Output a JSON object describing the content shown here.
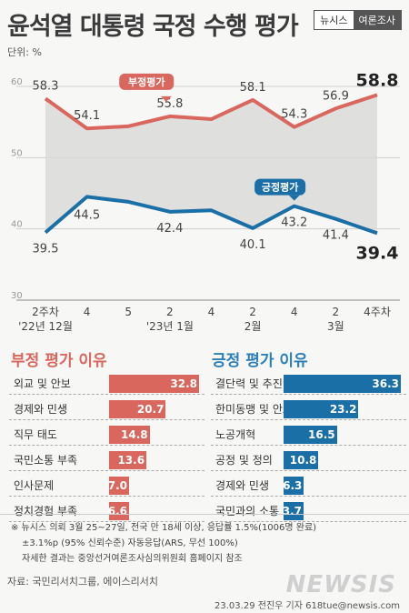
{
  "title": "윤석열 대통령 국정 수행 평가",
  "badge": {
    "left": "뉴시스",
    "right": "여론조사"
  },
  "unit_label": "단위: %",
  "chart_data": {
    "type": "line",
    "x": [
      "2주차 '22년 12월",
      "4",
      "5",
      "2 '23년 1월",
      "4",
      "2 2월",
      "4",
      "2 3월",
      "4주차"
    ],
    "x_ticks": [
      {
        "line1": "2주차",
        "line2": "'22년 12월"
      },
      {
        "line1": "4",
        "line2": ""
      },
      {
        "line1": "5",
        "line2": ""
      },
      {
        "line1": "2",
        "line2": "'23년 1월"
      },
      {
        "line1": "4",
        "line2": ""
      },
      {
        "line1": "2",
        "line2": "2월"
      },
      {
        "line1": "4",
        "line2": ""
      },
      {
        "line1": "2",
        "line2": "3월"
      },
      {
        "line1": "4주차",
        "line2": ""
      }
    ],
    "ylim": [
      30,
      60
    ],
    "yticks": [
      "30",
      "40",
      "50",
      "60"
    ],
    "series": [
      {
        "name": "부정평가",
        "values": [
          58.3,
          54.1,
          54.4,
          55.8,
          55.4,
          58.1,
          54.3,
          56.9,
          58.8
        ],
        "labels": [
          "58.3",
          "54.1",
          "",
          "55.8",
          "",
          "58.1",
          "54.3",
          "56.9",
          "58.8"
        ],
        "color": "#d9675d"
      },
      {
        "name": "긍정평가",
        "values": [
          39.5,
          44.5,
          43.8,
          42.4,
          42.6,
          40.1,
          43.2,
          41.4,
          39.4
        ],
        "labels": [
          "39.5",
          "44.5",
          "",
          "42.4",
          "",
          "40.1",
          "43.2",
          "41.4",
          "39.4"
        ],
        "color": "#1a6fa6"
      }
    ]
  },
  "negative_reasons": {
    "title": "부정 평가 이유",
    "items": [
      {
        "label": "외교 및 안보",
        "value": 32.8,
        "display": "32.8"
      },
      {
        "label": "경제와 민생",
        "value": 20.7,
        "display": "20.7"
      },
      {
        "label": "직무 태도",
        "value": 14.8,
        "display": "14.8"
      },
      {
        "label": "국민소통 부족",
        "value": 13.6,
        "display": "13.6"
      },
      {
        "label": "인사문제",
        "value": 7.0,
        "display": "7.0"
      },
      {
        "label": "정치경험 부족",
        "value": 6.6,
        "display": "6.6"
      }
    ]
  },
  "positive_reasons": {
    "title": "긍정 평가 이유",
    "items": [
      {
        "label": "결단력 및 추진력",
        "value": 36.3,
        "display": "36.3"
      },
      {
        "label": "한미동맹 및 안보 강화",
        "value": 23.2,
        "display": "23.2"
      },
      {
        "label": "노공개혁",
        "value": 16.5,
        "display": "16.5"
      },
      {
        "label": "공정 및 정의",
        "value": 10.8,
        "display": "10.8"
      },
      {
        "label": "경제와 민생",
        "value": 6.3,
        "display": "6.3"
      },
      {
        "label": "국민과의 소통",
        "value": 3.7,
        "display": "3.7"
      }
    ]
  },
  "footnote": {
    "line1": "※ 뉴시스 의뢰 3월 25~27일, 전국 만 18세 이상, 응답률 1.5%(1006명 완료)",
    "line2": "±3.1%p (95% 신뢰수준) 자동응답(ARS, 무선 100%)",
    "line3": "자세한 결과는 중앙선거여론조사심의위원회 홈페이지 참조"
  },
  "source": "자료: 국민리서치그룹, 에이스리서치",
  "watermark": "NEWSIS",
  "credit": "23.03.29 전진우 기자 618tue@newsis.com"
}
